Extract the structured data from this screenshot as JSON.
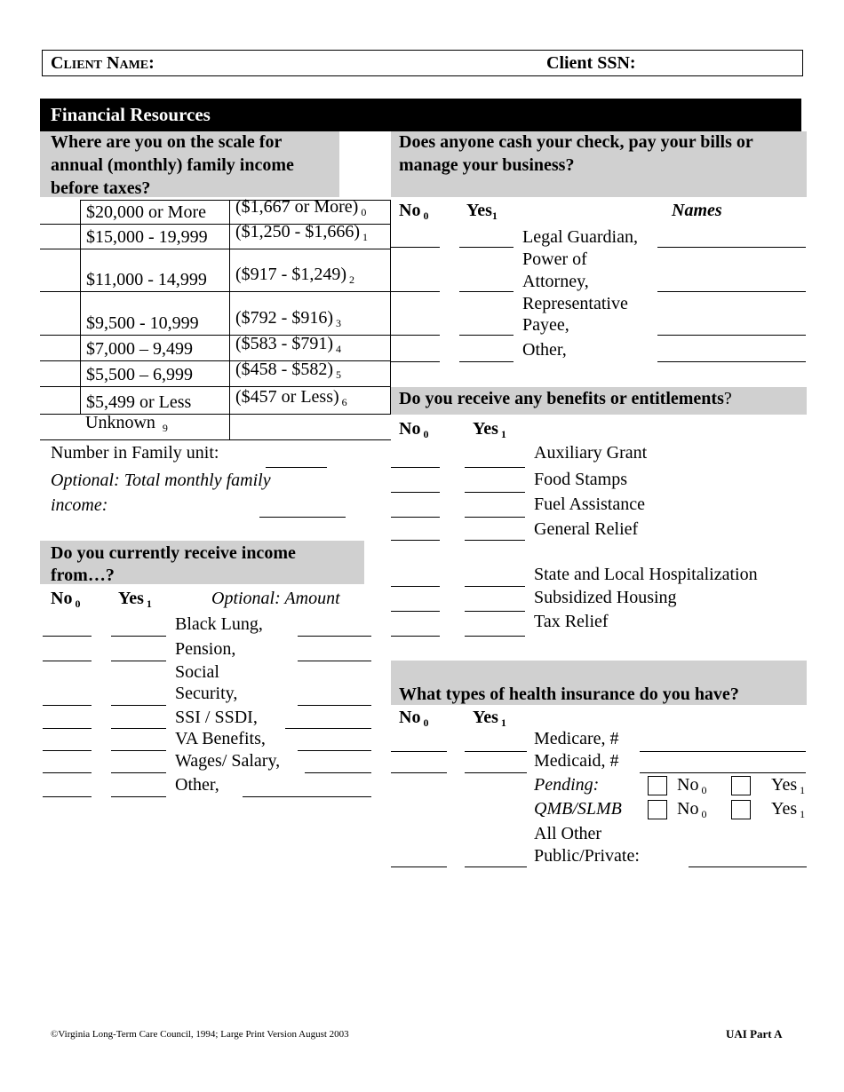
{
  "header": {
    "client_name_label": "Client Name:",
    "client_ssn_label": "Client SSN:"
  },
  "section_title": "Financial Resources",
  "income_scale": {
    "question": [
      "Where are you on the scale for",
      "annual (monthly) family income",
      "before taxes?"
    ],
    "rows": [
      {
        "annual": "$20,000 or More",
        "monthly": "($1,667 or More)",
        "code": "0"
      },
      {
        "annual": "$15,000 - 19,999",
        "monthly": "($1,250 - $1,666)",
        "code": "1"
      },
      {
        "annual": "$11,000 - 14,999",
        "monthly": "($917 - $1,249)",
        "code": "2"
      },
      {
        "annual": "$9,500 - 10,999",
        "monthly": "($792 - $916)",
        "code": "3"
      },
      {
        "annual": "$7,000 – 9,499",
        "monthly": "($583  - $791)",
        "code": "4"
      },
      {
        "annual": "$5,500 – 6,999",
        "monthly": "($458  - $582)",
        "code": "5"
      },
      {
        "annual": "$5,499 or Less",
        "monthly": "($457 or Less)",
        "code": "6"
      },
      {
        "annual": "Unknown",
        "monthly": "",
        "code": "9"
      }
    ],
    "family_unit_label": "Number in Family unit:",
    "optional_income_label": [
      "Optional: Total monthly family",
      "income:"
    ]
  },
  "income_sources": {
    "question": [
      "Do you currently receive income",
      "from…?"
    ],
    "no": {
      "label": "No",
      "code": "0"
    },
    "yes": {
      "label": "Yes",
      "code": "1"
    },
    "amount_label": "Optional:  Amount",
    "items": [
      "Black Lung,",
      "Pension,",
      "Social",
      "Security,",
      "SSI / SSDI,",
      "VA Benefits,",
      "Wages/ Salary,",
      "Other,"
    ]
  },
  "business": {
    "question": [
      "Does anyone cash your check, pay your bills or",
      "manage your business?"
    ],
    "no": {
      "label": "No",
      "code": "0"
    },
    "yes": {
      "label": "Yes",
      "code": "1"
    },
    "names_label": "Names",
    "items": [
      "Legal Guardian,",
      "Power of",
      "Attorney,",
      "Representative",
      "Payee,",
      "Other,"
    ]
  },
  "benefits": {
    "question": "Do you receive any benefits or entitlements",
    "question_end": "?",
    "no": {
      "label": "No",
      "code": "0"
    },
    "yes": {
      "label": "Yes",
      "code": "1"
    },
    "items": [
      "Auxiliary Grant",
      "Food Stamps",
      "Fuel Assistance",
      "General Relief",
      "State and Local Hospitalization",
      "Subsidized Housing",
      "Tax Relief"
    ]
  },
  "insurance": {
    "question": "What types of health insurance do you have?",
    "no": {
      "label": "No",
      "code": "0"
    },
    "yes": {
      "label": "Yes",
      "code": "1"
    },
    "medicare": "Medicare, #",
    "medicaid": "Medicaid, #",
    "pending": "Pending:",
    "qmb": "QMB/SLMB",
    "opt_no": {
      "label": "No",
      "code": "0"
    },
    "opt_yes": {
      "label": "Yes",
      "code": "1"
    },
    "other": [
      "All Other",
      "Public/Private:"
    ]
  },
  "footer": {
    "copyright": "©Virginia Long-Term Care Council, 1994; Large Print Version August 2003",
    "form_id": "UAI Part A"
  }
}
